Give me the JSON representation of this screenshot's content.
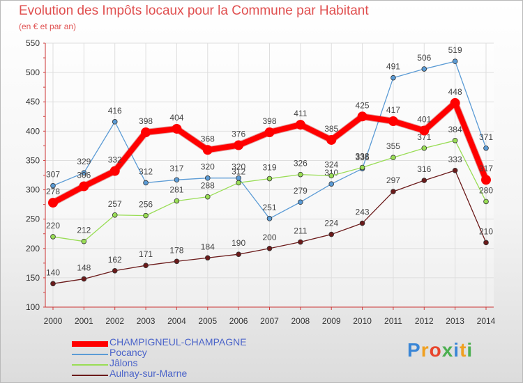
{
  "chart_data": {
    "type": "line",
    "title": "Evolution des Impôts locaux pour la Commune par Habitant",
    "subtitle": "(en € et par an)",
    "x": [
      "2000",
      "2001",
      "2002",
      "2003",
      "2004",
      "2005",
      "2006",
      "2007",
      "2008",
      "2009",
      "2010",
      "2011",
      "2012",
      "2013",
      "2014"
    ],
    "ylim": [
      100,
      550
    ],
    "yticks": [
      100,
      150,
      200,
      250,
      300,
      350,
      400,
      450,
      500,
      550
    ],
    "grid": true,
    "legend_position": "bottom-left",
    "series": [
      {
        "name": "CHAMPIGNEUL-CHAMPAGNE",
        "color": "#ff0000",
        "values": [
          278,
          306,
          332,
          398,
          404,
          368,
          376,
          398,
          411,
          385,
          425,
          417,
          401,
          448,
          317
        ]
      },
      {
        "name": "Pocancy",
        "color": "#5b9bd5",
        "values": [
          307,
          329,
          416,
          312,
          317,
          320,
          320,
          251,
          279,
          310,
          336,
          491,
          506,
          519,
          371
        ]
      },
      {
        "name": "Jâlons",
        "color": "#99dd55",
        "values": [
          220,
          212,
          257,
          256,
          281,
          288,
          312,
          319,
          326,
          324,
          338,
          355,
          371,
          384,
          280
        ]
      },
      {
        "name": "Aulnay-sur-Marne",
        "color": "#6b1a1a",
        "values": [
          140,
          148,
          162,
          171,
          178,
          184,
          190,
          200,
          211,
          224,
          243,
          297,
          316,
          333,
          210
        ]
      }
    ]
  },
  "logo": {
    "letters": [
      {
        "ch": "P",
        "color": "#3a86d6"
      },
      {
        "ch": "r",
        "color": "#f0a020"
      },
      {
        "ch": "o",
        "color": "#e8452c"
      },
      {
        "ch": "x",
        "color": "#4caf50"
      },
      {
        "ch": "i",
        "color": "#3a86d6"
      },
      {
        "ch": "t",
        "color": "#f0a020"
      },
      {
        "ch": "i",
        "color": "#4caf50"
      }
    ]
  }
}
